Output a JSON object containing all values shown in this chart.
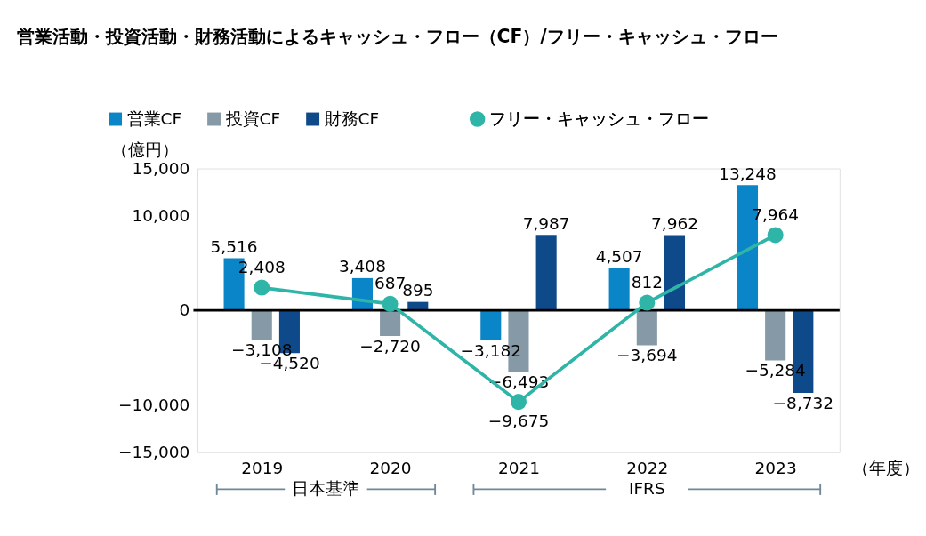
{
  "chart_data": {
    "type": "bar",
    "title": "営業活動・投資活動・財務活動によるキャッシュ・フロー（CF）/フリー・キャッシュ・フロー",
    "ylabel": "（億円）",
    "xlabel": "（年度）",
    "categories": [
      "2019",
      "2020",
      "2021",
      "2022",
      "2023"
    ],
    "series": [
      {
        "name": "営業CF",
        "color": "#0a85c7",
        "values": [
          5516,
          3408,
          -3182,
          4507,
          13248
        ],
        "value_labels": [
          "5,516",
          "3,408",
          "−3,182",
          "4,507",
          "13,248"
        ]
      },
      {
        "name": "投資CF",
        "color": "#8599a6",
        "values": [
          -3108,
          -2720,
          -6493,
          -3694,
          -5284
        ],
        "value_labels": [
          "−3,108",
          "−2,720",
          "−6,493",
          "−3,694",
          "−5,284"
        ]
      },
      {
        "name": "財務CF",
        "color": "#0e4a8a",
        "values": [
          -4520,
          895,
          7987,
          7962,
          -8732
        ],
        "value_labels": [
          "−4,520",
          "895",
          "7,987",
          "7,962",
          "−8,732"
        ]
      },
      {
        "name": "フリー・キャッシュ・フロー",
        "type": "line",
        "color": "#2fb5a8",
        "values": [
          2408,
          687,
          -9675,
          812,
          7964
        ],
        "value_labels": [
          "2,408",
          "687",
          "−9,675",
          "812",
          "7,964"
        ]
      }
    ],
    "ylim": [
      -15000,
      15000
    ],
    "yticks": [
      {
        "value": 15000,
        "label": "15,000"
      },
      {
        "value": 10000,
        "label": "10,000"
      },
      0,
      {
        "value": -10000,
        "label": "−10,000"
      },
      {
        "value": -15000,
        "label": "−15,000"
      }
    ],
    "ref_lines": [
      {
        "axis": "y",
        "value": 0,
        "color": "#000000"
      }
    ],
    "annotations": [
      "日本基準",
      "IFRS"
    ],
    "legend": "top left",
    "marker": "circle",
    "line_style": "solid",
    "grid": false
  }
}
